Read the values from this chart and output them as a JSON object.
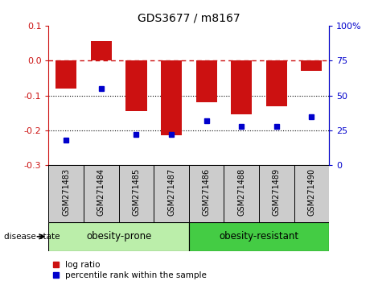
{
  "title": "GDS3677 / m8167",
  "samples": [
    "GSM271483",
    "GSM271484",
    "GSM271485",
    "GSM271487",
    "GSM271486",
    "GSM271488",
    "GSM271489",
    "GSM271490"
  ],
  "log_ratio": [
    -0.08,
    0.055,
    -0.145,
    -0.215,
    -0.12,
    -0.155,
    -0.13,
    -0.03
  ],
  "percentile_rank": [
    18,
    55,
    22,
    22,
    32,
    28,
    28,
    35
  ],
  "bar_color": "#cc1111",
  "dot_color": "#0000cc",
  "ylim_left": [
    -0.3,
    0.1
  ],
  "ylim_right": [
    0,
    100
  ],
  "yticks_left": [
    -0.3,
    -0.2,
    -0.1,
    0.0,
    0.1
  ],
  "yticks_right": [
    0,
    25,
    50,
    75,
    100
  ],
  "group1_label": "obesity-prone",
  "group2_label": "obesity-resistant",
  "group1_count": 4,
  "group2_count": 4,
  "group1_color": "#bbeeaa",
  "group2_color": "#44cc44",
  "disease_state_label": "disease state",
  "legend_bar_label": "log ratio",
  "legend_dot_label": "percentile rank within the sample",
  "dotted_lines": [
    -0.1,
    -0.2
  ],
  "background_color": "#ffffff",
  "sample_bg_color": "#cccccc",
  "title_fontsize": 10,
  "tick_fontsize": 8,
  "sample_fontsize": 7
}
